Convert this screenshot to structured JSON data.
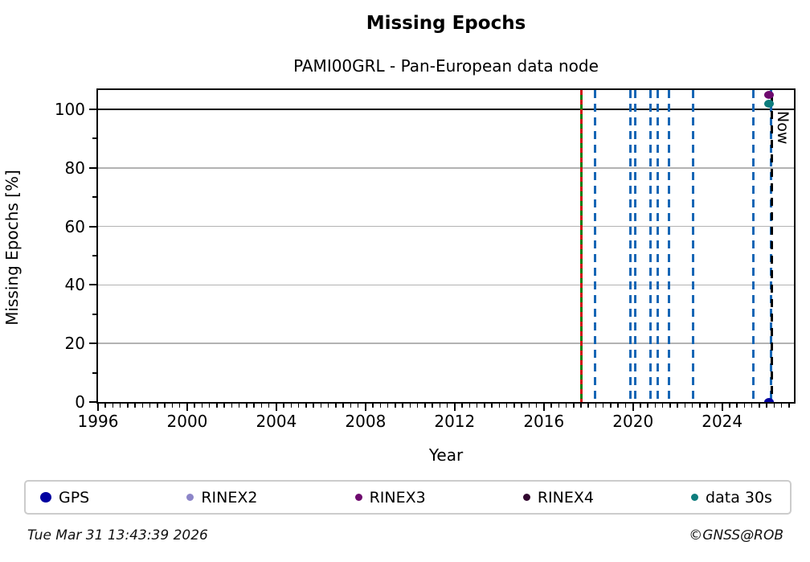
{
  "title": "Missing Epochs",
  "subtitle": "PAMI00GRL - Pan-European data node",
  "footer": {
    "timestamp": "Tue Mar 31 13:43:39 2026",
    "credit": "©GNSS@ROB"
  },
  "colors": {
    "blue_dashed_line": "#1666b5",
    "green_line": "#088008",
    "red_dashes": "#d01010",
    "now_line": "#000000",
    "gridline": "#b3b3b3",
    "hline_100": "#000000",
    "legend_border": "#cccccc",
    "gps": "#0000a0",
    "rinex2": "#8c85c8",
    "rinex3": "#6e0a6e",
    "rinex4": "#31082f",
    "data30s": "#0d7d7d"
  },
  "chart_data": {
    "type": "scatter",
    "title": "Missing Epochs",
    "subtitle": "PAMI00GRL - Pan-European data node",
    "xlabel": "Year",
    "ylabel": "Missing Epochs [%]",
    "xlim": [
      1996,
      2027.22
    ],
    "ylim": [
      0,
      106.6
    ],
    "x_major_ticks": [
      1996,
      2000,
      2004,
      2008,
      2012,
      2016,
      2020,
      2024
    ],
    "x_minor_step_years": 0.33333,
    "y_major_ticks": [
      0,
      20,
      40,
      60,
      80,
      100
    ],
    "y_minor_ticks": [
      10,
      30,
      50,
      70,
      90
    ],
    "grid_y": [
      20,
      40,
      60,
      80
    ],
    "hline_y": 100,
    "grid_on": true,
    "vlines_blue_dashed_years": [
      2018.3,
      2019.9,
      2020.1,
      2020.8,
      2021.1,
      2021.6,
      2022.7,
      2025.4,
      2026.2
    ],
    "vline_green_red_year": 2017.7,
    "now_marker": {
      "year": 2026.24,
      "label": "Now"
    },
    "series": [
      {
        "name": "GPS",
        "color": "#0000a0",
        "points": [
          {
            "x": 2026.1,
            "y": 0
          }
        ]
      },
      {
        "name": "RINEX2",
        "color": "#8c85c8",
        "points": []
      },
      {
        "name": "RINEX3",
        "color": "#6e0a6e",
        "points": [
          {
            "x": 2026.1,
            "y": 105
          }
        ]
      },
      {
        "name": "RINEX4",
        "color": "#31082f",
        "points": []
      },
      {
        "name": "data 30s",
        "color": "#0d7d7d",
        "points": [
          {
            "x": 2026.1,
            "y": 102
          }
        ]
      }
    ],
    "legend": {
      "position": "bottom",
      "entries": [
        {
          "label": "GPS",
          "color": "#0000a0",
          "marker_w": 14,
          "marker_h": 13
        },
        {
          "label": "RINEX2",
          "color": "#8c85c8",
          "marker_w": 9,
          "marker_h": 9
        },
        {
          "label": "RINEX3",
          "color": "#6e0a6e",
          "marker_w": 9,
          "marker_h": 9
        },
        {
          "label": "RINEX4",
          "color": "#31082f",
          "marker_w": 9,
          "marker_h": 9
        },
        {
          "label": "data 30s",
          "color": "#0d7d7d",
          "marker_w": 9,
          "marker_h": 9
        }
      ]
    }
  }
}
